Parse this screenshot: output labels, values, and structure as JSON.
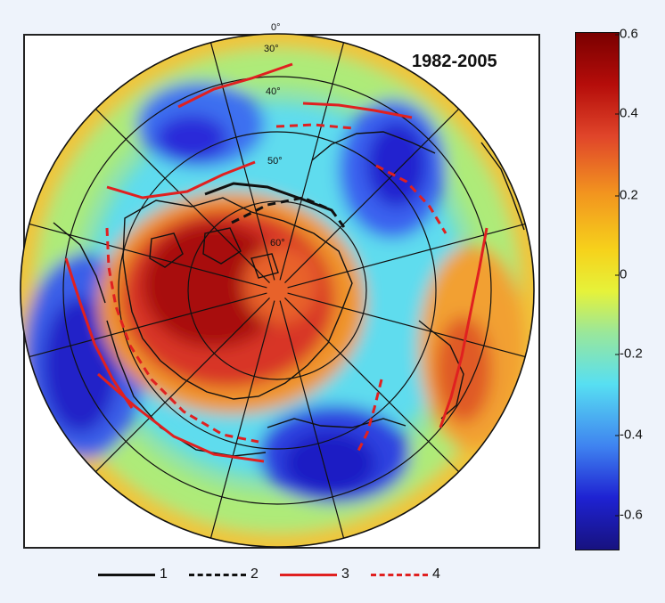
{
  "map": {
    "title": "1982-2005",
    "latitude_labels": [
      "0°",
      "30°",
      "40°",
      "50°",
      "60°"
    ]
  },
  "colorbar": {
    "ticks": [
      "0.6",
      "0.4",
      "0.2",
      "0",
      "-0.2",
      "-0.4",
      "-0.6"
    ],
    "colors": [
      "#7a0000",
      "#b50d0a",
      "#e0452a",
      "#f2941f",
      "#f6d21b",
      "#e6f23a",
      "#9ae79a",
      "#57dff2",
      "#3f83f0",
      "#1e22d2",
      "#17127f"
    ]
  },
  "legend": {
    "items": [
      {
        "label": "1",
        "style": "solid",
        "color": "#111111"
      },
      {
        "label": "2",
        "style": "dashed",
        "color": "#111111"
      },
      {
        "label": "3",
        "style": "solid",
        "color": "#e02020"
      },
      {
        "label": "4",
        "style": "dashed",
        "color": "#e02020"
      }
    ]
  }
}
